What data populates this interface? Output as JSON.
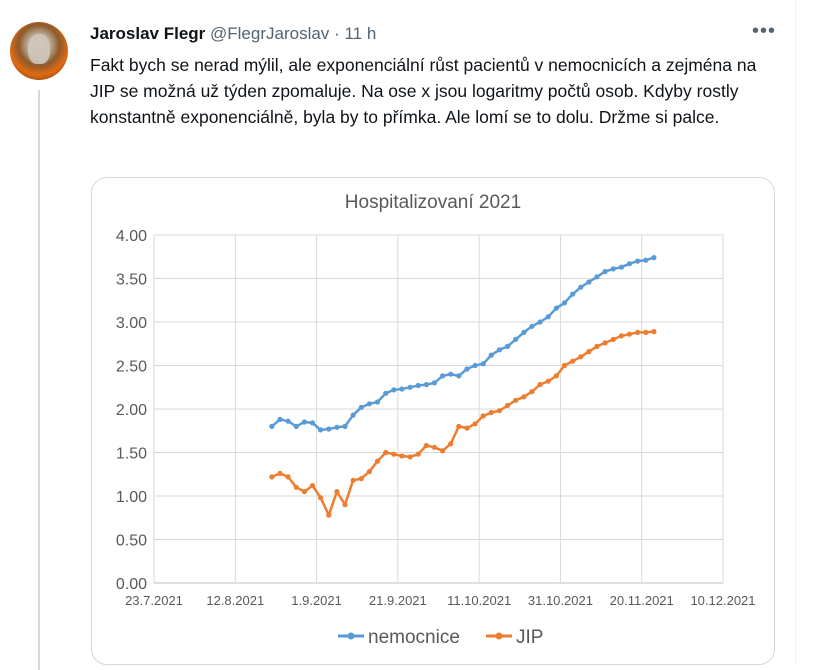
{
  "tweet": {
    "author_name": "Jaroslav Flegr",
    "author_handle": "@FlegrJaroslav",
    "separator": "·",
    "time": "11 h",
    "more_glyph": "•••",
    "text": "Fakt bych se nerad mýlil, ale exponenciální růst pacientů v nemocnicích a zejména na JIP se možná už týden zpomaluje. Na ose x jsou logaritmy počtů osob. Kdyby rostly konstantně exponenciálně, byla by to přímka. Ale lomí se to dolu. Držme si palce."
  },
  "chart_data": {
    "type": "line",
    "title": "Hospitalizovaní 2021",
    "xlabel": "",
    "ylabel": "",
    "x_ticks": [
      "23.7.2021",
      "12.8.2021",
      "1.9.2021",
      "21.9.2021",
      "11.10.2021",
      "31.10.2021",
      "20.11.2021",
      "10.12.2021"
    ],
    "y_ticks": [
      "0.00",
      "0.50",
      "1.00",
      "1.50",
      "2.00",
      "2.50",
      "3.00",
      "3.50",
      "4.00"
    ],
    "ylim": [
      0,
      4
    ],
    "grid": true,
    "legend_position": "bottom",
    "series": [
      {
        "name": "nemocnice",
        "color": "#5b9bd5",
        "x": [
          "2021-08-21",
          "2021-08-23",
          "2021-08-25",
          "2021-08-27",
          "2021-08-29",
          "2021-08-31",
          "2021-09-02",
          "2021-09-04",
          "2021-09-06",
          "2021-09-08",
          "2021-09-10",
          "2021-09-12",
          "2021-09-14",
          "2021-09-16",
          "2021-09-18",
          "2021-09-20",
          "2021-09-22",
          "2021-09-24",
          "2021-09-26",
          "2021-09-28",
          "2021-09-30",
          "2021-10-02",
          "2021-10-04",
          "2021-10-06",
          "2021-10-08",
          "2021-10-10",
          "2021-10-12",
          "2021-10-14",
          "2021-10-16",
          "2021-10-18",
          "2021-10-20",
          "2021-10-22",
          "2021-10-24",
          "2021-10-26",
          "2021-10-28",
          "2021-10-30",
          "2021-11-01",
          "2021-11-03",
          "2021-11-05",
          "2021-11-07",
          "2021-11-09",
          "2021-11-11",
          "2021-11-13",
          "2021-11-15",
          "2021-11-17",
          "2021-11-19",
          "2021-11-21",
          "2021-11-23"
        ],
        "y": [
          1.8,
          1.88,
          1.86,
          1.8,
          1.85,
          1.84,
          1.76,
          1.77,
          1.79,
          1.8,
          1.93,
          2.02,
          2.06,
          2.08,
          2.18,
          2.22,
          2.23,
          2.25,
          2.27,
          2.28,
          2.3,
          2.38,
          2.4,
          2.38,
          2.46,
          2.5,
          2.52,
          2.62,
          2.68,
          2.72,
          2.8,
          2.88,
          2.95,
          3.0,
          3.06,
          3.16,
          3.22,
          3.32,
          3.4,
          3.46,
          3.52,
          3.58,
          3.61,
          3.63,
          3.67,
          3.7,
          3.71,
          3.74
        ]
      },
      {
        "name": "JIP",
        "color": "#ed7d31",
        "x": [
          "2021-08-21",
          "2021-08-23",
          "2021-08-25",
          "2021-08-27",
          "2021-08-29",
          "2021-08-31",
          "2021-09-02",
          "2021-09-04",
          "2021-09-06",
          "2021-09-08",
          "2021-09-10",
          "2021-09-12",
          "2021-09-14",
          "2021-09-16",
          "2021-09-18",
          "2021-09-20",
          "2021-09-22",
          "2021-09-24",
          "2021-09-26",
          "2021-09-28",
          "2021-09-30",
          "2021-10-02",
          "2021-10-04",
          "2021-10-06",
          "2021-10-08",
          "2021-10-10",
          "2021-10-12",
          "2021-10-14",
          "2021-10-16",
          "2021-10-18",
          "2021-10-20",
          "2021-10-22",
          "2021-10-24",
          "2021-10-26",
          "2021-10-28",
          "2021-10-30",
          "2021-11-01",
          "2021-11-03",
          "2021-11-05",
          "2021-11-07",
          "2021-11-09",
          "2021-11-11",
          "2021-11-13",
          "2021-11-15",
          "2021-11-17",
          "2021-11-19",
          "2021-11-21",
          "2021-11-23"
        ],
        "y": [
          1.22,
          1.26,
          1.22,
          1.1,
          1.05,
          1.12,
          0.98,
          0.78,
          1.05,
          0.9,
          1.18,
          1.2,
          1.28,
          1.4,
          1.5,
          1.48,
          1.46,
          1.45,
          1.48,
          1.58,
          1.56,
          1.52,
          1.6,
          1.8,
          1.78,
          1.83,
          1.92,
          1.96,
          1.98,
          2.04,
          2.1,
          2.14,
          2.2,
          2.28,
          2.32,
          2.38,
          2.5,
          2.55,
          2.6,
          2.66,
          2.72,
          2.76,
          2.8,
          2.84,
          2.86,
          2.88,
          2.88,
          2.89
        ]
      }
    ]
  }
}
